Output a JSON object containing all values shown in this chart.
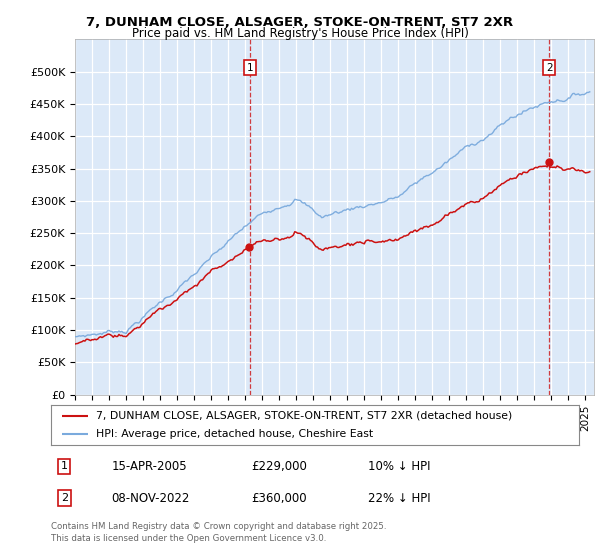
{
  "title_line1": "7, DUNHAM CLOSE, ALSAGER, STOKE-ON-TRENT, ST7 2XR",
  "title_line2": "Price paid vs. HM Land Registry's House Price Index (HPI)",
  "xlim_start": 1995.0,
  "xlim_end": 2025.5,
  "ylim": [
    0,
    550000
  ],
  "yticks": [
    0,
    50000,
    100000,
    150000,
    200000,
    250000,
    300000,
    350000,
    400000,
    450000,
    500000
  ],
  "ytick_labels": [
    "£0",
    "£50K",
    "£100K",
    "£150K",
    "£200K",
    "£250K",
    "£300K",
    "£350K",
    "£400K",
    "£450K",
    "£500K"
  ],
  "bg_color": "#dce9f8",
  "grid_color": "#ffffff",
  "hpi_color": "#7aaadd",
  "price_color": "#cc1111",
  "marker1_date": 2005.29,
  "marker1_price": 229000,
  "marker2_date": 2022.86,
  "marker2_price": 360000,
  "legend_label_red": "7, DUNHAM CLOSE, ALSAGER, STOKE-ON-TRENT, ST7 2XR (detached house)",
  "legend_label_blue": "HPI: Average price, detached house, Cheshire East",
  "annotation1_date": "15-APR-2005",
  "annotation1_price": "£229,000",
  "annotation1_hpi": "10% ↓ HPI",
  "annotation2_date": "08-NOV-2022",
  "annotation2_price": "£360,000",
  "annotation2_hpi": "22% ↓ HPI",
  "footer": "Contains HM Land Registry data © Crown copyright and database right 2025.\nThis data is licensed under the Open Government Licence v3.0."
}
